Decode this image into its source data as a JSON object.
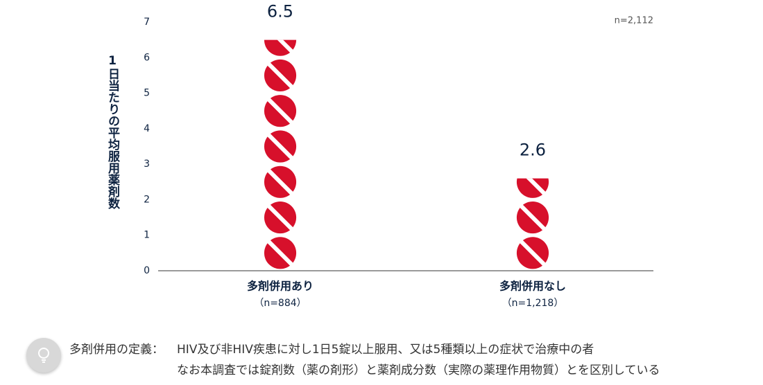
{
  "chart_data": {
    "type": "pictogram-bar",
    "y_label": "1日当たりの平均服用薬剤数",
    "note": "n=2,112",
    "categories": [
      "多剤併用あり",
      "多剤併用なし"
    ],
    "category_sublabels": [
      "（n=884）",
      "（n=1,218）"
    ],
    "values": [
      6.5,
      2.6
    ],
    "color": "#d7102b",
    "ylim": [
      0,
      7
    ],
    "yticks": [
      0,
      1,
      2,
      3,
      4,
      5,
      6,
      7
    ]
  },
  "footnote": {
    "label": "多剤併用の定義：",
    "lines": [
      "HIV及び非HIV疾患に対し1日5錠以上服用、又は5種類以上の症状で治療中の者",
      "なお本調査では錠剤数（薬の剤形）と薬剤成分数（実際の薬理作用物質）とを区別している"
    ]
  }
}
